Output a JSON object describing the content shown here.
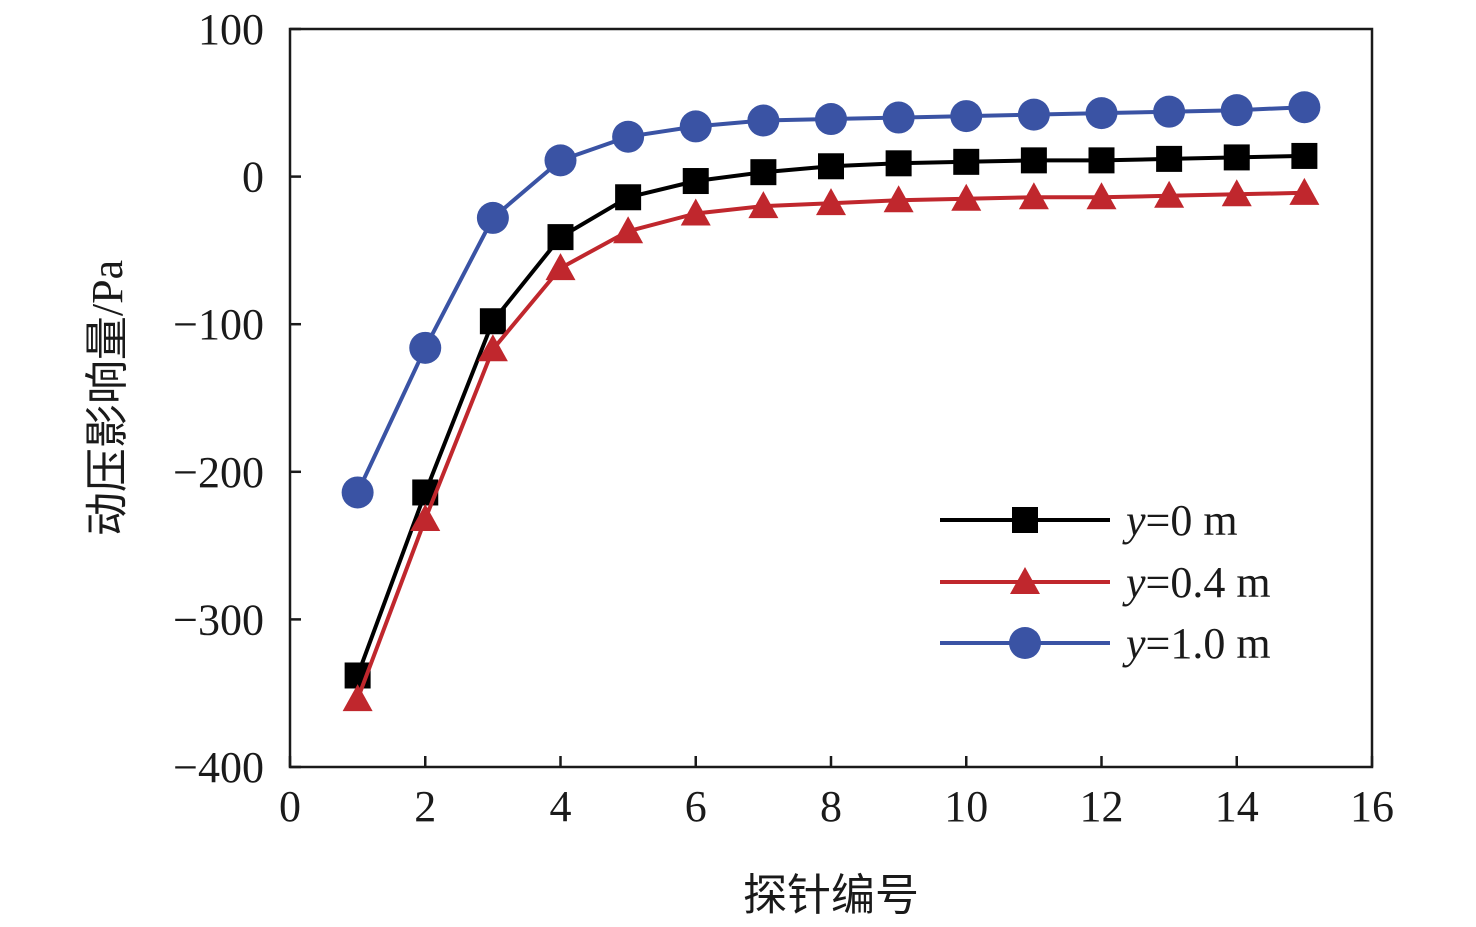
{
  "chart_data": {
    "type": "line",
    "title": "",
    "xlabel": "探针编号",
    "ylabel": "动压影响量/Pa",
    "xlim": [
      0,
      16
    ],
    "ylim": [
      -400,
      100
    ],
    "xticks": [
      0,
      2,
      4,
      6,
      8,
      10,
      12,
      14,
      16
    ],
    "yticks": [
      100,
      0,
      -100,
      -200,
      -300,
      -400
    ],
    "ytick_labels": [
      "100",
      "0",
      "−100",
      "−200",
      "−300",
      "−400"
    ],
    "grid": false,
    "legend_position": "lower-right",
    "x": [
      1,
      2,
      3,
      4,
      5,
      6,
      7,
      8,
      9,
      10,
      11,
      12,
      13,
      14,
      15
    ],
    "series": [
      {
        "name": "y=0 m",
        "legend_var": "y",
        "legend_rest": "=0 m",
        "color": "#000000",
        "marker": "square",
        "values": [
          -338,
          -214,
          -98,
          -41,
          -14,
          -3,
          3,
          7,
          9,
          10,
          11,
          11,
          12,
          13,
          14
        ]
      },
      {
        "name": "y=0.4 m",
        "legend_var": "y",
        "legend_rest": "=0.4 m",
        "color": "#c0272d",
        "marker": "triangle",
        "values": [
          -354,
          -232,
          -117,
          -62,
          -37,
          -25,
          -20,
          -18,
          -16,
          -15,
          -14,
          -14,
          -13,
          -12,
          -11
        ]
      },
      {
        "name": "y=1.0 m",
        "legend_var": "y",
        "legend_rest": "=1.0 m",
        "color": "#3a53a4",
        "marker": "circle",
        "values": [
          -214,
          -116,
          -28,
          11,
          27,
          34,
          38,
          39,
          40,
          41,
          42,
          43,
          44,
          45,
          47
        ]
      }
    ]
  }
}
